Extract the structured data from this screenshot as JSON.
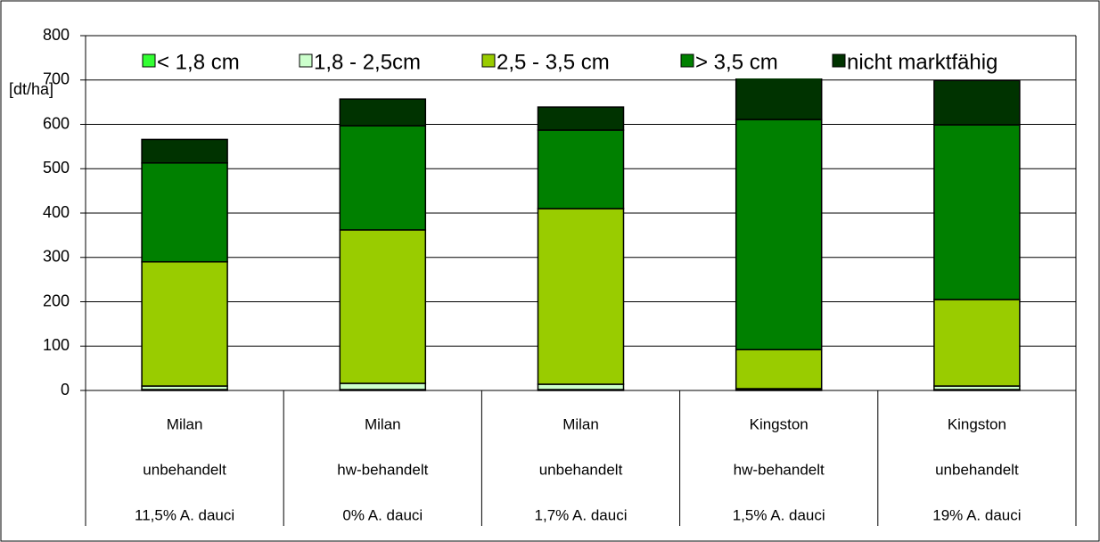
{
  "chart_data": {
    "type": "stacked_bar",
    "y_label": "[dt/ha]",
    "categories": [
      [
        "Milan",
        "unbehandelt",
        "11,5% A. dauci"
      ],
      [
        "Milan",
        "hw-behandelt",
        "0% A. dauci"
      ],
      [
        "Milan",
        "unbehandelt",
        "1,7% A. dauci"
      ],
      [
        "Kingston",
        "hw-behandelt",
        "1,5% A. dauci"
      ],
      [
        "Kingston",
        "unbehandelt",
        "19% A. dauci"
      ]
    ],
    "series": [
      {
        "name": "< 1,8 cm",
        "color": "#33ff33",
        "values": [
          2,
          2,
          2,
          1,
          2
        ]
      },
      {
        "name": "1,8 - 2,5cm",
        "color": "#ccffcc",
        "values": [
          8,
          14,
          12,
          3,
          8
        ]
      },
      {
        "name": "2,5 - 3,5 cm",
        "color": "#99cc00",
        "values": [
          280,
          346,
          396,
          88,
          195
        ]
      },
      {
        "name": "> 3,5 cm",
        "color": "#008000",
        "values": [
          223,
          235,
          177,
          519,
          394
        ]
      },
      {
        "name": "nicht marktfähig",
        "color": "#003300",
        "values": [
          53,
          60,
          52,
          100,
          100
        ]
      }
    ],
    "ylim": [
      0,
      800
    ],
    "yticks": [
      0,
      100,
      200,
      300,
      400,
      500,
      600,
      700,
      800
    ],
    "grid": true,
    "legend": "top"
  }
}
